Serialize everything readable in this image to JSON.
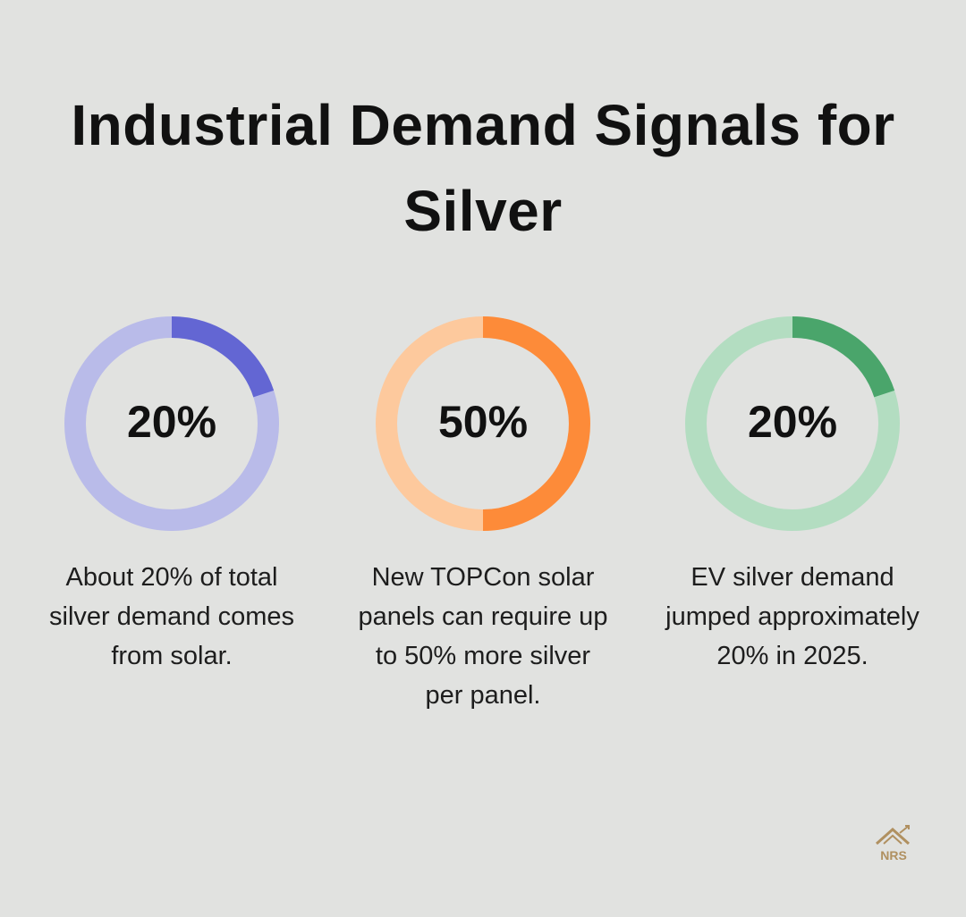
{
  "title": "Industrial Demand Signals for Silver",
  "logo": "NRS",
  "chart_data": [
    {
      "type": "donut",
      "values": [
        20
      ],
      "value_labels": [
        "20%"
      ],
      "ylim": [
        0,
        100
      ],
      "color": "#6366d3",
      "track_color": "#b9bbe9",
      "caption": "About 20% of total silver demand comes from solar."
    },
    {
      "type": "donut",
      "values": [
        50
      ],
      "value_labels": [
        "50%"
      ],
      "ylim": [
        0,
        100
      ],
      "color": "#fd8b39",
      "track_color": "#fdc99d",
      "caption": "New TOPCon solar panels can require up to 50% more silver per panel."
    },
    {
      "type": "donut",
      "values": [
        20
      ],
      "value_labels": [
        "20%"
      ],
      "ylim": [
        0,
        100
      ],
      "color": "#4aa56b",
      "track_color": "#b3ddc1",
      "caption": "EV silver demand jumped approximately 20% in 2025."
    }
  ]
}
